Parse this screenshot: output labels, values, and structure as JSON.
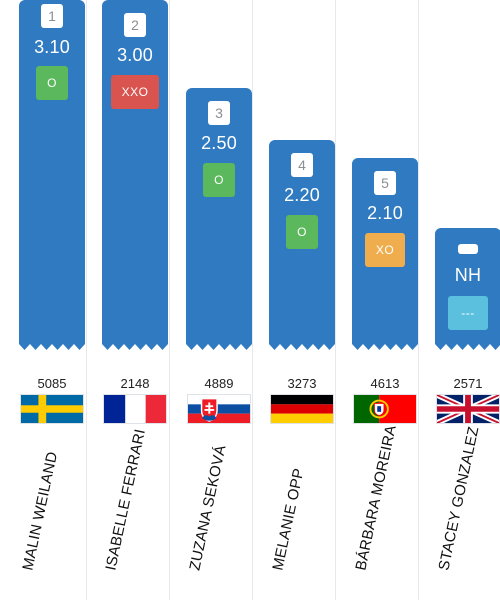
{
  "athletes": [
    {
      "rank": "1",
      "height": "3.10",
      "attempt": "O",
      "attempt_kind": "o",
      "bib": "5085",
      "flag": "sweden-flag",
      "name": "MALIN WEILAND"
    },
    {
      "rank": "2",
      "height": "3.00",
      "attempt": "XXO",
      "attempt_kind": "xxo",
      "bib": "2148",
      "flag": "france-flag",
      "name": "ISABELLE FERRARI"
    },
    {
      "rank": "3",
      "height": "2.50",
      "attempt": "O",
      "attempt_kind": "o",
      "bib": "4889",
      "flag": "slovakia-flag",
      "name": "ZUZANA SEKOVÁ"
    },
    {
      "rank": "4",
      "height": "2.20",
      "attempt": "O",
      "attempt_kind": "o",
      "bib": "3273",
      "flag": "germany-flag",
      "name": "MELANIE OPP"
    },
    {
      "rank": "5",
      "height": "2.10",
      "attempt": "XO",
      "attempt_kind": "xo",
      "bib": "4613",
      "flag": "portugal-flag",
      "name": "BÁRBARA MOREIRA"
    },
    {
      "rank": "",
      "height": "NH",
      "attempt": "---",
      "attempt_kind": "dash",
      "bib": "2571",
      "flag": "uk-flag",
      "name": "STACEY GONZALEZ"
    }
  ],
  "colors": {
    "bar": "#2f7ac0",
    "attempt_clear": "#5cb85c",
    "attempt_two_fails": "#d9534f",
    "attempt_one_fail": "#f0ad4e",
    "attempt_none": "#5bc0de"
  }
}
